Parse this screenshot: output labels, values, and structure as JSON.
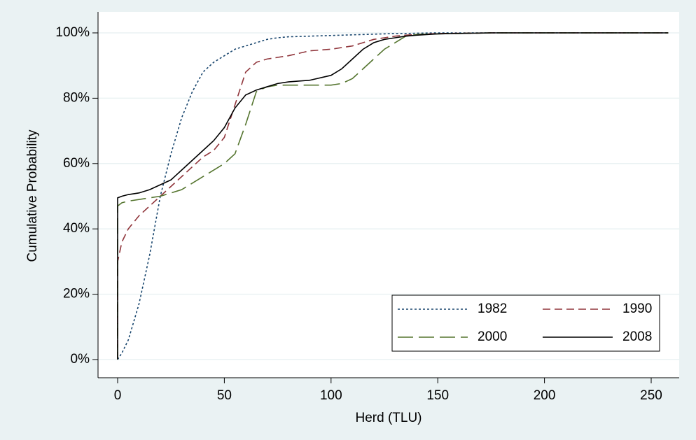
{
  "chart_data": {
    "type": "line",
    "xlabel": "Herd (TLU)",
    "ylabel": "Cumulative Probability",
    "x": [
      0,
      0,
      2,
      5,
      10,
      15,
      20,
      25,
      30,
      35,
      40,
      45,
      50,
      55,
      60,
      65,
      70,
      75,
      80,
      90,
      100,
      105,
      110,
      115,
      120,
      125,
      130,
      135,
      140,
      150,
      175,
      200,
      258
    ],
    "series": [
      {
        "name": "1982",
        "color": "#1a476f",
        "dash": "3,3",
        "values": [
          0,
          0,
          2,
          6,
          17,
          32,
          50,
          63,
          74,
          82,
          88,
          91,
          93,
          95,
          96,
          97,
          98,
          98.5,
          98.8,
          99,
          99.2,
          99.3,
          99.4,
          99.5,
          99.6,
          99.7,
          99.8,
          99.8,
          99.9,
          100,
          100,
          100,
          100
        ]
      },
      {
        "name": "1990",
        "color": "#90353b",
        "dash": "11,6",
        "values": [
          0,
          30,
          36,
          40,
          44,
          47,
          50,
          53,
          56,
          59,
          62,
          64,
          68,
          78,
          88,
          91,
          92,
          92.5,
          93,
          94.5,
          95,
          95.5,
          96,
          97,
          98,
          98.5,
          99,
          99.3,
          99.5,
          99.8,
          100,
          100,
          100
        ]
      },
      {
        "name": "2000",
        "color": "#55752f",
        "dash": "22,8",
        "values": [
          0,
          47,
          48,
          48.5,
          49,
          49.5,
          50,
          51,
          52,
          54,
          56,
          58,
          60,
          63,
          72,
          82,
          83.5,
          84,
          84,
          84,
          84,
          84.5,
          86,
          89,
          92,
          95,
          97,
          99,
          99.5,
          99.7,
          100,
          100,
          100
        ]
      },
      {
        "name": "2008",
        "color": "#000000",
        "dash": "none",
        "values": [
          0,
          49.5,
          50,
          50.5,
          51,
          52,
          53.5,
          55,
          58,
          61,
          64,
          67,
          71,
          77,
          81,
          82.5,
          83.5,
          84.5,
          85,
          85.5,
          87,
          89,
          92,
          95,
          97,
          98,
          98.5,
          99,
          99.3,
          99.7,
          100,
          100,
          100
        ]
      }
    ],
    "xlim": [
      0,
      250
    ],
    "xticks": [
      0,
      50,
      100,
      150,
      200,
      250
    ],
    "ylim": [
      0,
      100
    ],
    "yticks": [
      {
        "value": 0,
        "label": "0%"
      },
      {
        "value": 20,
        "label": "20%"
      },
      {
        "value": 40,
        "label": "40%"
      },
      {
        "value": 60,
        "label": "60%"
      },
      {
        "value": 80,
        "label": "80%"
      },
      {
        "value": 100,
        "label": "100%"
      }
    ],
    "grid": true,
    "legend": "bottom-right"
  }
}
